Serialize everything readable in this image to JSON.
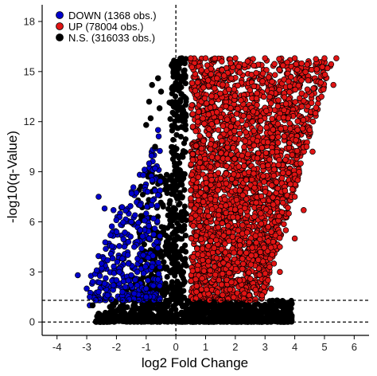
{
  "chart_data": {
    "type": "scatter",
    "title": "",
    "xlabel": "log2 Fold Change",
    "ylabel": "-log10(q-Value)",
    "xlim": [
      -4.5,
      6.5
    ],
    "ylim": [
      -0.8,
      19
    ],
    "x_ticks": [
      "-4",
      "-3",
      "-2",
      "-1",
      "0",
      "1",
      "2",
      "3",
      "4",
      "5",
      "6"
    ],
    "y_ticks": [
      "0",
      "3",
      "6",
      "9",
      "12",
      "15",
      "18"
    ],
    "grid": false,
    "legend_position": "top-left",
    "reference_lines": {
      "vertical_x": 0,
      "horizontal_y": [
        0,
        1.3
      ],
      "style": "dashed"
    },
    "series": [
      {
        "name": "DOWN (1368 obs.)",
        "color": "#0000cc",
        "region": "x from -3.3 to -0.5, y from 1.3 to 11.6",
        "points": [
          [
            -3.3,
            2.8
          ],
          [
            -3.0,
            2.0
          ],
          [
            -2.9,
            1.5
          ],
          [
            -2.6,
            1.8
          ],
          [
            -2.9,
            1.0
          ],
          [
            -2.4,
            2.3
          ],
          [
            -2.3,
            1.6
          ],
          [
            -2.7,
            1.3
          ],
          [
            -2.0,
            2.5
          ],
          [
            -1.9,
            3.2
          ],
          [
            -1.7,
            2.1
          ],
          [
            -1.6,
            3.5
          ],
          [
            -1.5,
            2.8
          ],
          [
            -1.8,
            3.8
          ],
          [
            -1.4,
            4.5
          ],
          [
            -1.3,
            3.0
          ],
          [
            -1.2,
            5.5
          ],
          [
            -1.1,
            4.0
          ],
          [
            -1.0,
            6.5
          ],
          [
            -0.9,
            5.0
          ],
          [
            -0.8,
            8.5
          ],
          [
            -0.7,
            10.4
          ],
          [
            -0.6,
            11.5
          ],
          [
            -1.2,
            7.0
          ],
          [
            -1.5,
            6.0
          ],
          [
            -2.1,
            6.7
          ],
          [
            -2.6,
            7.5
          ],
          [
            -2.4,
            6.8
          ],
          [
            -2.2,
            5.2
          ],
          [
            -1.1,
            8.8
          ],
          [
            -0.9,
            9.5
          ],
          [
            -0.7,
            9.2
          ],
          [
            -1.3,
            2.2
          ],
          [
            -1.0,
            2.0
          ],
          [
            -0.8,
            3.3
          ],
          [
            -1.6,
            4.8
          ],
          [
            -1.9,
            3.0
          ],
          [
            -2.1,
            2.2
          ],
          [
            -1.4,
            1.7
          ],
          [
            -1.8,
            1.8
          ],
          [
            -0.6,
            7.6
          ],
          [
            -0.95,
            7.8
          ],
          [
            -2.8,
            2.4
          ],
          [
            -2.5,
            3.5
          ],
          [
            -2.3,
            3.7
          ],
          [
            -1.0,
            1.5
          ],
          [
            -0.75,
            6.2
          ],
          [
            -0.65,
            4.8
          ]
        ]
      },
      {
        "name": "UP (78004 obs.)",
        "color": "#e01414",
        "region": "x from 0.5 to 5.4, y from 1.3 to 15.8 (dense block, right edge widening with y)",
        "points": [
          [
            0.5,
            15.8
          ],
          [
            1.0,
            15.8
          ],
          [
            2.0,
            15.8
          ],
          [
            3.0,
            15.8
          ],
          [
            4.0,
            15.8
          ],
          [
            5.0,
            15.8
          ],
          [
            5.4,
            15.8
          ],
          [
            5.1,
            15.2
          ],
          [
            5.3,
            14.2
          ],
          [
            4.9,
            13.5
          ],
          [
            4.7,
            12.5
          ],
          [
            4.5,
            11.5
          ],
          [
            4.4,
            10.5
          ],
          [
            4.2,
            9.5
          ],
          [
            4.1,
            8.5
          ],
          [
            4.0,
            7.5
          ],
          [
            3.8,
            6.5
          ],
          [
            3.7,
            5.5
          ],
          [
            3.5,
            4.5
          ],
          [
            3.3,
            3.5
          ],
          [
            3.1,
            2.5
          ],
          [
            2.9,
            1.6
          ],
          [
            2.5,
            1.3
          ],
          [
            1.5,
            1.3
          ],
          [
            4.3,
            6.7
          ],
          [
            4.6,
            10.2
          ],
          [
            4.0,
            5.0
          ],
          [
            3.5,
            3.0
          ],
          [
            3.2,
            2.0
          ]
        ]
      },
      {
        "name": "N.S. (316033 obs.)",
        "color": "#000000",
        "region": "x from -2.9 to 4.0, y from 0 to 15.8 (dense near 0)",
        "points": [
          [
            -0.8,
            14.2
          ],
          [
            -0.9,
            13.2
          ],
          [
            -0.5,
            13.8
          ],
          [
            -0.6,
            14.6
          ],
          [
            -0.85,
            12.2
          ],
          [
            -1.0,
            11.8
          ],
          [
            -0.55,
            12.8
          ],
          [
            -0.7,
            10.5
          ],
          [
            -2.6,
            0.5
          ],
          [
            -2.2,
            0.6
          ],
          [
            -1.9,
            0.8
          ],
          [
            -2.8,
            1.0
          ],
          [
            -1.4,
            0.4
          ],
          [
            -0.9,
            1.0
          ],
          [
            2.5,
            0.7
          ],
          [
            3.0,
            0.8
          ],
          [
            3.5,
            1.0
          ],
          [
            3.9,
            1.1
          ],
          [
            2.2,
            1.1
          ],
          [
            1.5,
            0.4
          ],
          [
            0.1,
            15.2
          ],
          [
            0.2,
            15.8
          ],
          [
            0.05,
            14.0
          ],
          [
            0.3,
            15.5
          ],
          [
            -0.1,
            0.3
          ],
          [
            0.0,
            0.1
          ]
        ]
      }
    ]
  }
}
